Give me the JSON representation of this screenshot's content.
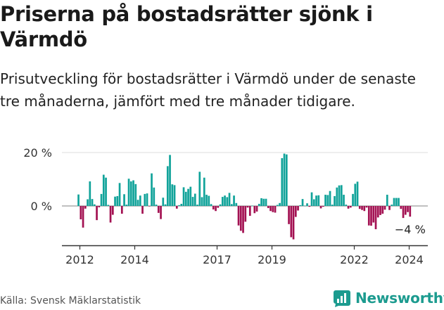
{
  "title": "Priserna på bostadsrätter sjönk i Värmdö",
  "subtitle": "Prisutveckling för bostadsrätter i Värmdö under de senaste tre månaderna, jämfört med tre månader tidigare.",
  "source": "Källa: Svensk Mäklarstatistik",
  "brand": "Newsworthy",
  "colors": {
    "positive": "#11a39a",
    "negative": "#a31152",
    "grid": "#dddddd",
    "axis": "#333333",
    "brand": "#1c9b8f"
  },
  "chart_data": {
    "type": "bar",
    "ylabel": "",
    "xlabel": "",
    "ylim": [
      -14,
      21
    ],
    "x_start": 2011.95,
    "x_step": 0.08333,
    "yticks": [
      {
        "value": 20,
        "label": "20 %"
      },
      {
        "value": 0,
        "label": "0 %"
      }
    ],
    "xticks": [
      {
        "value": 2012,
        "label": "2012"
      },
      {
        "value": 2014,
        "label": "2014"
      },
      {
        "value": 2017,
        "label": "2017"
      },
      {
        "value": 2019,
        "label": "2019"
      },
      {
        "value": 2022,
        "label": "2022"
      },
      {
        "value": 2024,
        "label": "2024"
      }
    ],
    "end_label": "−4 %",
    "values": [
      4.3,
      -5,
      -8.1,
      -1,
      2.5,
      9.2,
      2.6,
      0.6,
      -5.3,
      -0.5,
      4.5,
      11.7,
      10.6,
      0.4,
      -6.2,
      -3.3,
      3.5,
      3.7,
      8.6,
      -2.9,
      4.4,
      0.5,
      10.2,
      9.2,
      9.6,
      8.2,
      2.3,
      3.9,
      -2.9,
      4.5,
      4.7,
      -0.1,
      12.2,
      6.9,
      0.5,
      -2.6,
      -4.9,
      3.1,
      0.6,
      14.9,
      19.1,
      8.1,
      7.8,
      -1,
      0.3,
      0.8,
      7,
      5.3,
      6.4,
      7.2,
      3.4,
      4.6,
      0.5,
      12.8,
      3.3,
      10.6,
      4.2,
      3.8,
      0.7,
      -1.3,
      -1.9,
      -0.7,
      0.6,
      3.4,
      3.9,
      3.3,
      4.9,
      0.7,
      3.9,
      1.1,
      -7.3,
      -9.3,
      -10.1,
      -5.9,
      -0.6,
      -3.7,
      0.1,
      -2.7,
      -2.1,
      0.8,
      2.9,
      2.7,
      2.7,
      -0.8,
      -1.9,
      -2.3,
      -2.5,
      0.4,
      1.1,
      17.9,
      19.6,
      19.3,
      -6.8,
      -11.7,
      -12.5,
      -4.1,
      -1.7,
      0.3,
      2.6,
      0.1,
      1,
      -0.3,
      5.1,
      2.5,
      3.9,
      4,
      -0.9,
      -0.3,
      4.2,
      4.1,
      5.6,
      0.5,
      3.7,
      6.9,
      7.7,
      7.8,
      4.2,
      0.5,
      -1,
      -0.6,
      4.5,
      8.3,
      9.1,
      -1.1,
      -1.5,
      -1.9,
      -0.6,
      -7.3,
      -7.4,
      -6.2,
      -8.7,
      -4.3,
      -3.4,
      -2.9,
      -1.4,
      4.2,
      -1.5,
      0.5,
      3,
      3,
      3,
      -1.1,
      -4.5,
      -3.3,
      -2.3,
      -4
    ]
  }
}
